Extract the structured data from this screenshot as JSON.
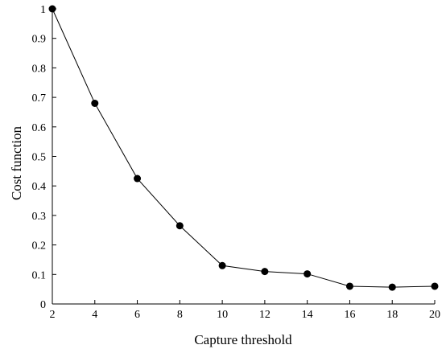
{
  "chart_data": {
    "type": "line",
    "xlabel": "Capture threshold",
    "ylabel": "Cost function",
    "xlim": [
      2,
      20
    ],
    "ylim": [
      0,
      1
    ],
    "xticks": [
      2,
      4,
      6,
      8,
      10,
      12,
      14,
      16,
      18,
      20
    ],
    "yticks": [
      0,
      0.1,
      0.2,
      0.3,
      0.4,
      0.5,
      0.6,
      0.7,
      0.8,
      0.9,
      1
    ],
    "ytick_labels": [
      "0",
      "0.1",
      "0.2",
      "0.3",
      "0.4",
      "0.5",
      "0.6",
      "0.7",
      "0.8",
      "0.9",
      "1"
    ],
    "grid": false,
    "series": [
      {
        "x": [
          2,
          4,
          6,
          8,
          10,
          12,
          14,
          16,
          18,
          20
        ],
        "values": [
          1.0,
          0.68,
          0.425,
          0.265,
          0.13,
          0.11,
          0.102,
          0.06,
          0.057,
          0.06
        ],
        "color": "#000000",
        "marker": "filled-circle"
      }
    ]
  }
}
